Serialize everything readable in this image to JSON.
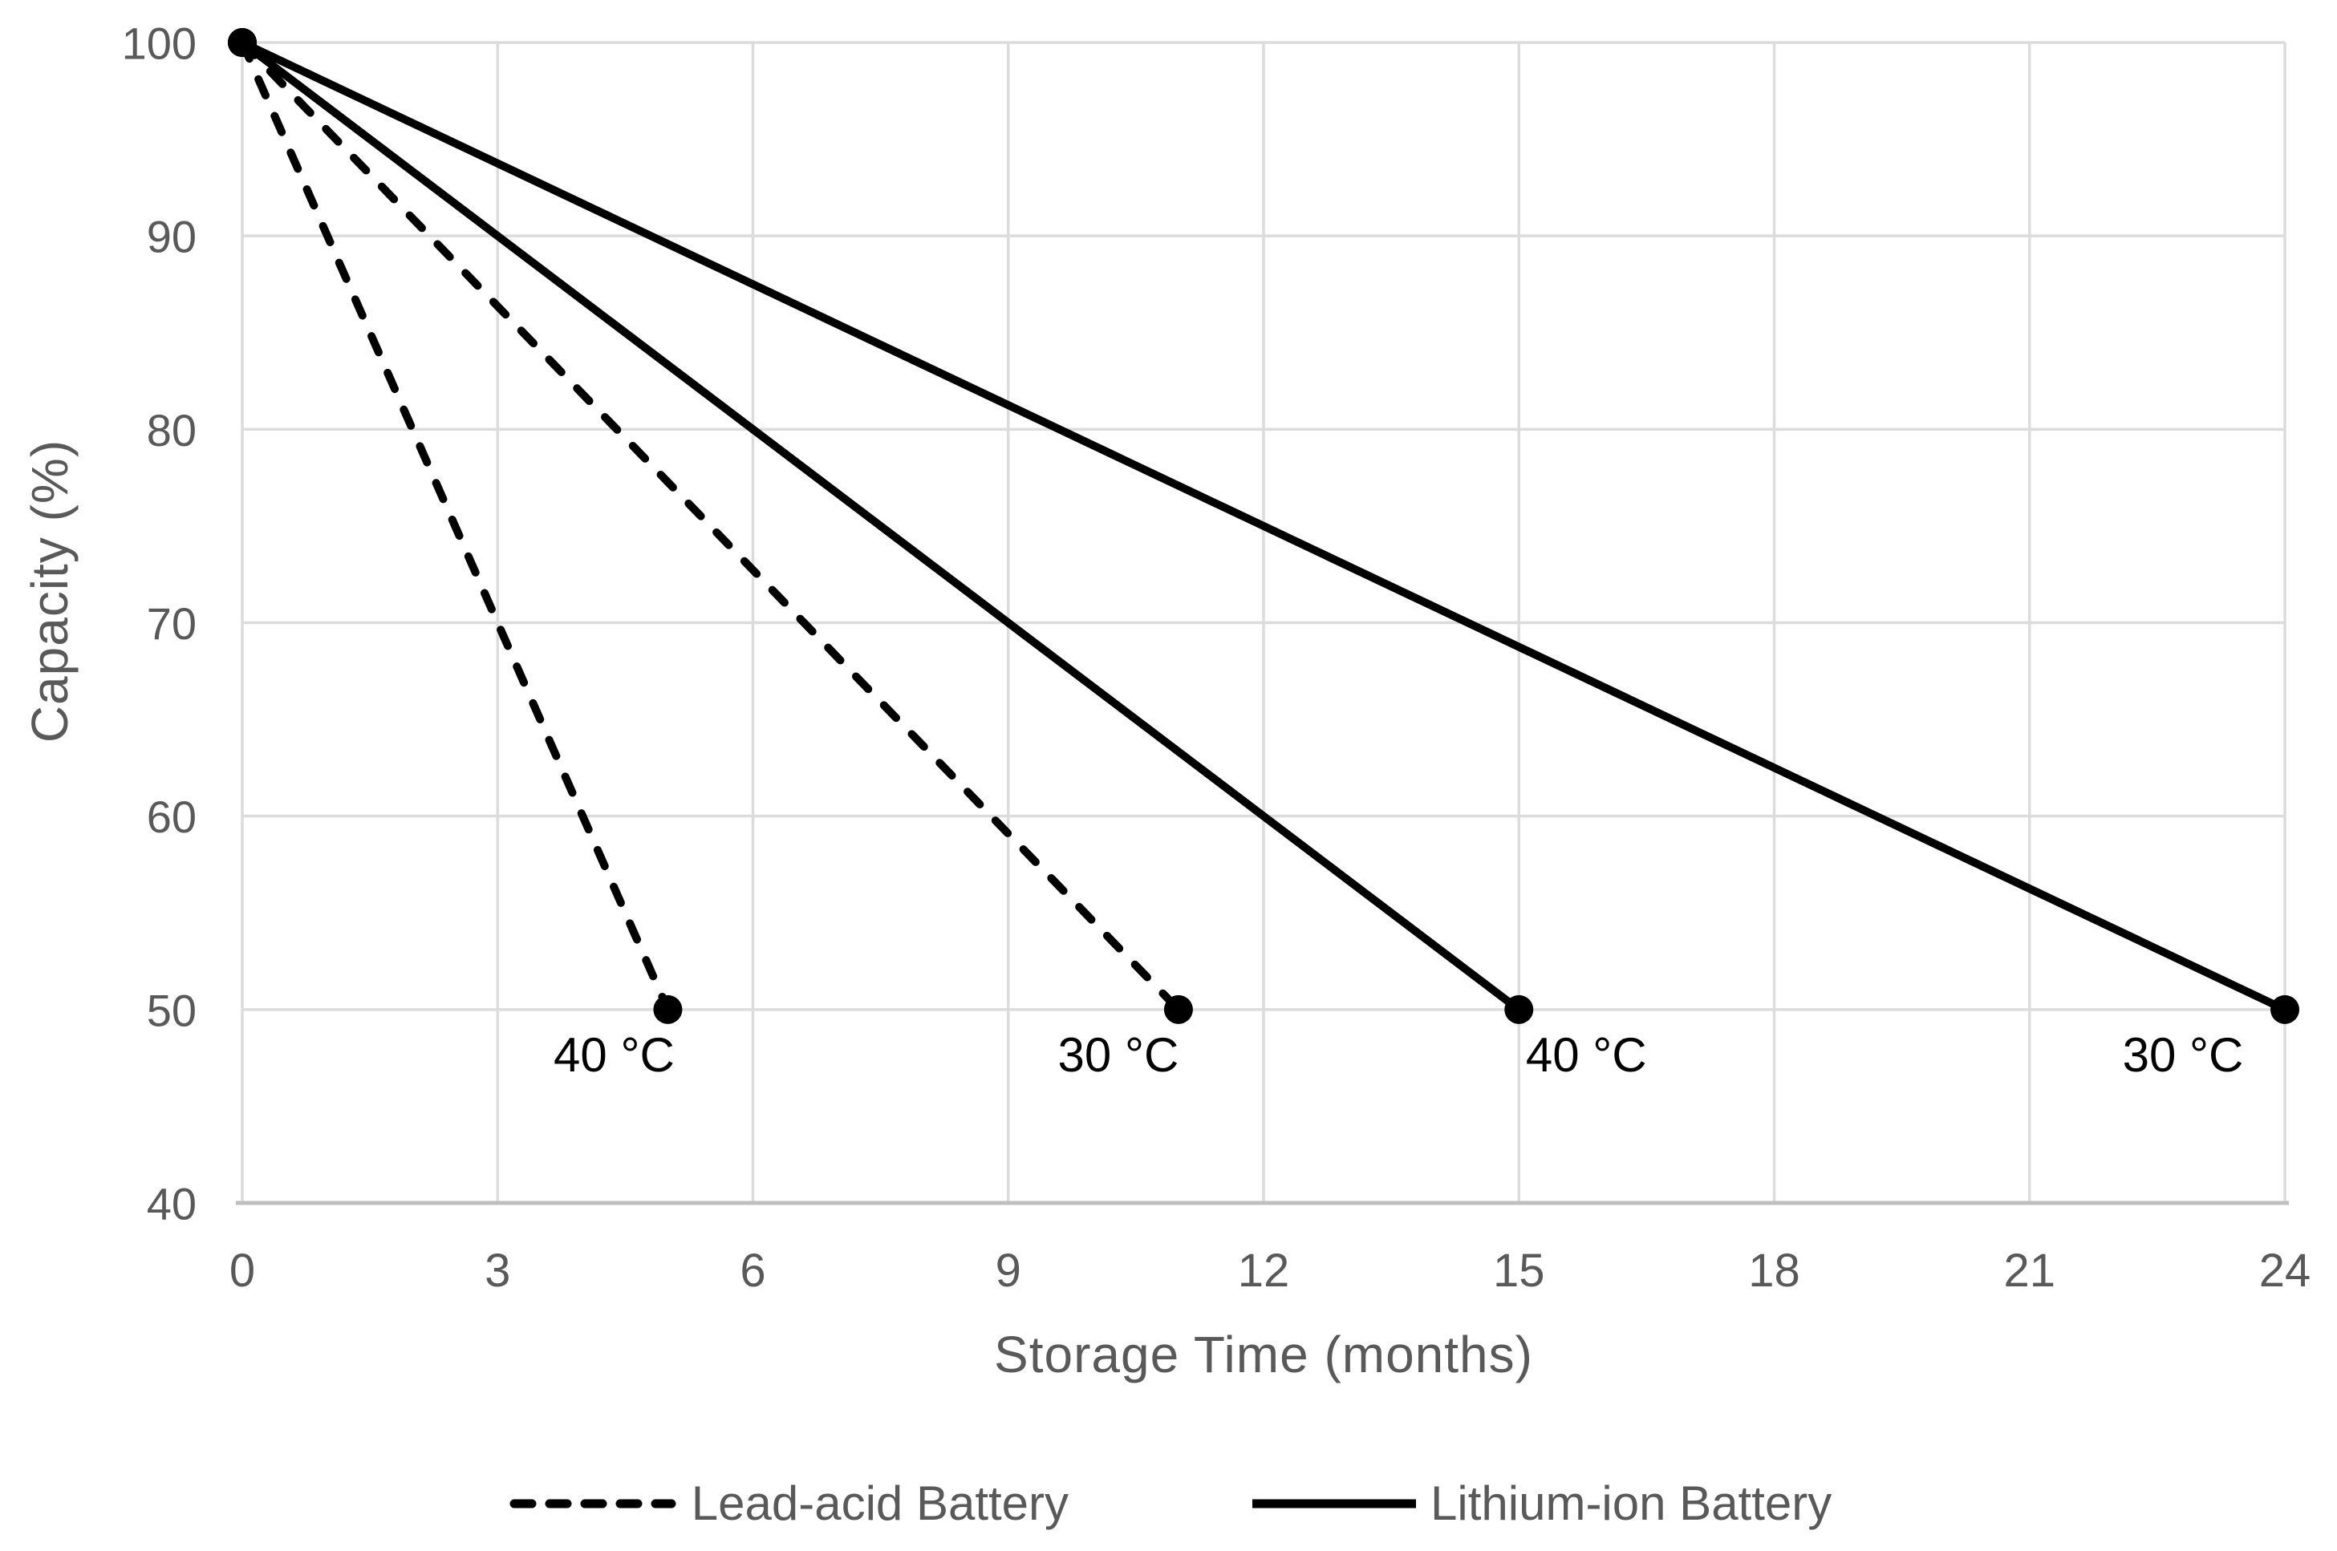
{
  "chart_data": {
    "type": "line",
    "title": "",
    "xlabel": "Storage Time (months)",
    "ylabel": "Capacity (%)",
    "xlim": [
      0,
      24
    ],
    "ylim": [
      40,
      100
    ],
    "xticks": [
      0,
      3,
      6,
      9,
      12,
      15,
      18,
      21,
      24
    ],
    "yticks": [
      40,
      50,
      60,
      70,
      80,
      90,
      100
    ],
    "grid": true,
    "legend_position": "bottom",
    "series": [
      {
        "name": "Lead-acid Battery",
        "condition": "40 °C",
        "line_style": "dashed",
        "points": [
          [
            0,
            100
          ],
          [
            5,
            50
          ]
        ],
        "annotation": {
          "text": "40 °C",
          "offset": [
            -67,
            77
          ]
        }
      },
      {
        "name": "Lead-acid Battery",
        "condition": "30 °C",
        "line_style": "dashed",
        "points": [
          [
            0,
            100
          ],
          [
            11,
            50
          ]
        ],
        "annotation": {
          "text": "30 °C",
          "offset": [
            -75,
            77
          ]
        }
      },
      {
        "name": "Lithium-ion Battery",
        "condition": "40 °C",
        "line_style": "solid",
        "points": [
          [
            0,
            100
          ],
          [
            15,
            50
          ]
        ],
        "annotation": {
          "text": "40 °C",
          "offset": [
            84,
            77
          ]
        }
      },
      {
        "name": "Lithium-ion Battery",
        "condition": "30 °C",
        "line_style": "solid",
        "points": [
          [
            0,
            100
          ],
          [
            24,
            50
          ]
        ],
        "annotation": {
          "text": "30 °C",
          "offset": [
            -127,
            77
          ]
        }
      }
    ],
    "legend": [
      {
        "label": "Lead-acid Battery",
        "line_style": "dashed"
      },
      {
        "label": "Lithium-ion Battery",
        "line_style": "solid"
      }
    ],
    "colors": {
      "series": "#000000",
      "gridline": "#dcdcdc",
      "x_axis_line": "#bfbfbf",
      "tick_label": "#595959",
      "axis_title": "#595959",
      "legend_text": "#595959",
      "annotation": "#000000",
      "background": "#ffffff"
    }
  }
}
